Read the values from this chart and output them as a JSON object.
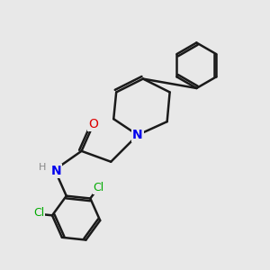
{
  "background_color": "#e8e8e8",
  "bond_color": "#1a1a1a",
  "nitrogen_color": "#0000ee",
  "oxygen_color": "#dd0000",
  "chlorine_color": "#00aa00",
  "hydrogen_color": "#888888",
  "line_width": 1.8,
  "figsize": [
    3.0,
    3.0
  ],
  "dpi": 100,
  "xlim": [
    0,
    10
  ],
  "ylim": [
    0,
    10
  ]
}
